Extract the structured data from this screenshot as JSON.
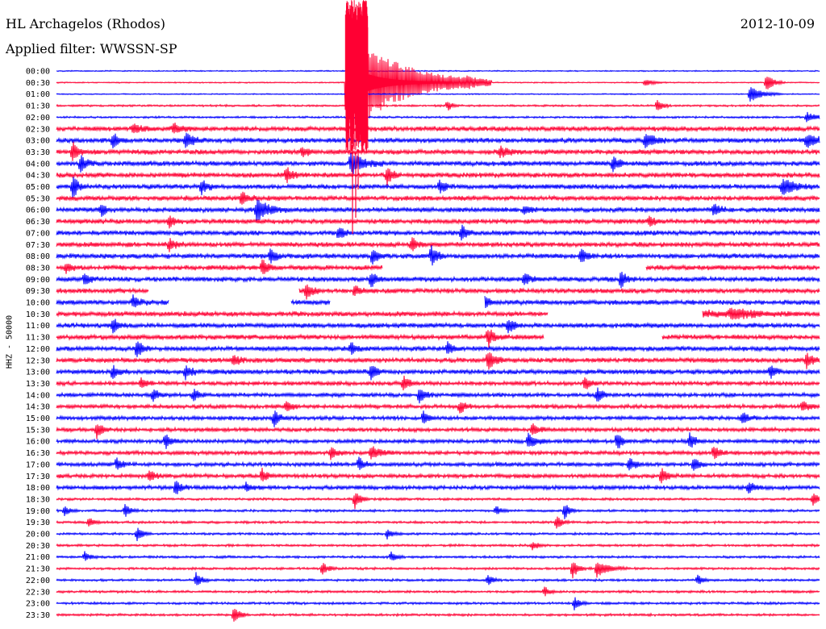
{
  "header": {
    "station": "HL Archagelos (Rhodos)",
    "filter": "Applied filter: WWSSN-SP",
    "date": "2012-10-09"
  },
  "chart_data": {
    "type": "line",
    "title": "HL Archagelos (Rhodos)",
    "subtitle": "Applied filter: WWSSN-SP",
    "date": "2012-10-09",
    "ylabel": "HHZ - 50000",
    "row_labels": [
      "00:00",
      "00:30",
      "01:00",
      "01:30",
      "02:00",
      "02:30",
      "03:00",
      "03:30",
      "04:00",
      "04:30",
      "05:00",
      "05:30",
      "06:00",
      "06:30",
      "07:00",
      "07:30",
      "08:00",
      "08:30",
      "09:00",
      "09:30",
      "10:00",
      "10:30",
      "11:00",
      "11:30",
      "12:00",
      "12:30",
      "13:00",
      "13:30",
      "14:00",
      "14:30",
      "15:00",
      "15:30",
      "16:00",
      "16:30",
      "17:00",
      "17:30",
      "18:00",
      "18:30",
      "19:00",
      "19:30",
      "20:00",
      "20:30",
      "21:00",
      "21:30",
      "22:00",
      "22:30",
      "23:00",
      "23:30"
    ],
    "colors": [
      "#0000ff",
      "#ff0033"
    ],
    "grid": false,
    "legend": "none"
  }
}
